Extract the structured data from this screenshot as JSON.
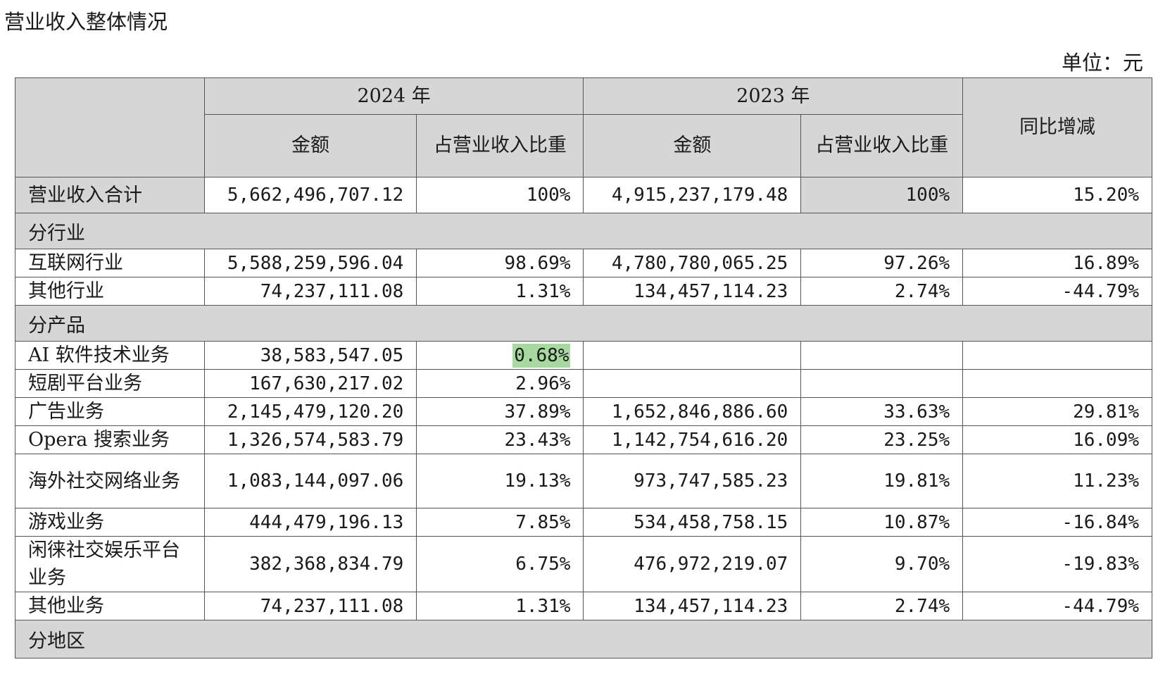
{
  "title": "营业收入整体情况",
  "unit_label": "单位：元",
  "header": {
    "year_2024": "2024 年",
    "year_2023": "2023 年",
    "amount": "金额",
    "ratio": "占营业收入比重",
    "yoy": "同比增减"
  },
  "total_row": {
    "label": "营业收入合计",
    "amt_2024": "5,662,496,707.12",
    "ratio_2024": "100%",
    "amt_2023": "4,915,237,179.48",
    "ratio_2023": "100%",
    "yoy": "15.20%"
  },
  "sections": {
    "industry": "分行业",
    "product": "分产品",
    "region": "分地区"
  },
  "industry_rows": [
    {
      "label": "互联网行业",
      "amt_2024": "5,588,259,596.04",
      "ratio_2024": "98.69%",
      "amt_2023": "4,780,780,065.25",
      "ratio_2023": "97.26%",
      "yoy": "16.89%"
    },
    {
      "label": "其他行业",
      "amt_2024": "74,237,111.08",
      "ratio_2024": "1.31%",
      "amt_2023": "134,457,114.23",
      "ratio_2023": "2.74%",
      "yoy": "-44.79%"
    }
  ],
  "product_rows": [
    {
      "label": "AI 软件技术业务",
      "amt_2024": "38,583,547.05",
      "ratio_2024": "0.68%",
      "amt_2023": "",
      "ratio_2023": "",
      "yoy": ""
    },
    {
      "label": "短剧平台业务",
      "amt_2024": "167,630,217.02",
      "ratio_2024": "2.96%",
      "amt_2023": "",
      "ratio_2023": "",
      "yoy": ""
    },
    {
      "label": "广告业务",
      "amt_2024": "2,145,479,120.20",
      "ratio_2024": "37.89%",
      "amt_2023": "1,652,846,886.60",
      "ratio_2023": "33.63%",
      "yoy": "29.81%"
    },
    {
      "label": "Opera 搜索业务",
      "amt_2024": "1,326,574,583.79",
      "ratio_2024": "23.43%",
      "amt_2023": "1,142,754,616.20",
      "ratio_2023": "23.25%",
      "yoy": "16.09%"
    },
    {
      "label": "海外社交网络业务",
      "amt_2024": "1,083,144,097.06",
      "ratio_2024": "19.13%",
      "amt_2023": "973,747,585.23",
      "ratio_2023": "19.81%",
      "yoy": "11.23%"
    },
    {
      "label": "游戏业务",
      "amt_2024": "444,479,196.13",
      "ratio_2024": "7.85%",
      "amt_2023": "534,458,758.15",
      "ratio_2023": "10.87%",
      "yoy": "-16.84%"
    },
    {
      "label": "闲徕社交娱乐平台业务",
      "amt_2024": "382,368,834.79",
      "ratio_2024": "6.75%",
      "amt_2023": "476,972,219.07",
      "ratio_2023": "9.70%",
      "yoy": "-19.83%"
    },
    {
      "label": "其他业务",
      "amt_2024": "74,237,111.08",
      "ratio_2024": "1.31%",
      "amt_2023": "134,457,114.23",
      "ratio_2023": "2.74%",
      "yoy": "-44.79%"
    }
  ],
  "colors": {
    "header_bg": "#d6d6d6",
    "highlight": "#a7d9a0",
    "border": "#555555"
  }
}
